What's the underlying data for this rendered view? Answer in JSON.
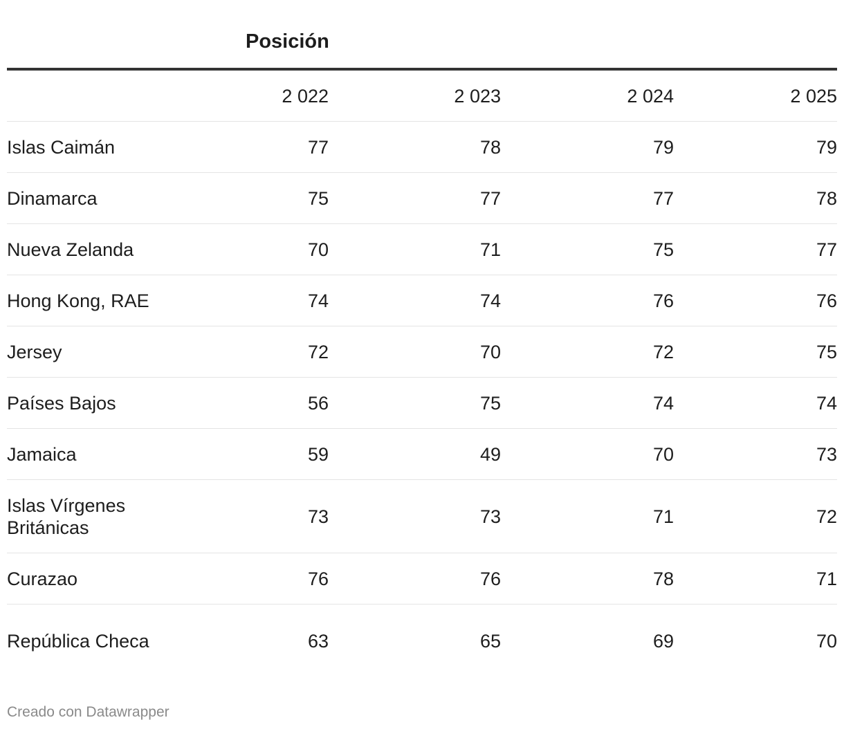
{
  "chart_data": {
    "type": "table",
    "group_header": "Posición",
    "columns": [
      "",
      "2 022",
      "2 023",
      "2 024",
      "2 025"
    ],
    "rows": [
      {
        "name": "Islas Caimán",
        "values": [
          "77",
          "78",
          "79",
          "79"
        ]
      },
      {
        "name": "Dinamarca",
        "values": [
          "75",
          "77",
          "77",
          "78"
        ]
      },
      {
        "name": "Nueva Zelanda",
        "values": [
          "70",
          "71",
          "75",
          "77"
        ]
      },
      {
        "name": "Hong Kong, RAE",
        "values": [
          "74",
          "74",
          "76",
          "76"
        ]
      },
      {
        "name": "Jersey",
        "values": [
          "72",
          "70",
          "72",
          "75"
        ]
      },
      {
        "name": "Países Bajos",
        "values": [
          "56",
          "75",
          "74",
          "74"
        ]
      },
      {
        "name": "Jamaica",
        "values": [
          "59",
          "49",
          "70",
          "73"
        ]
      },
      {
        "name": "Islas Vírgenes Británicas",
        "values": [
          "73",
          "73",
          "71",
          "72"
        ]
      },
      {
        "name": "Curazao",
        "values": [
          "76",
          "76",
          "78",
          "71"
        ]
      },
      {
        "name": "República Checa",
        "values": [
          "63",
          "65",
          "69",
          "70"
        ]
      }
    ]
  },
  "footer": {
    "credit": "Creado con Datawrapper"
  }
}
